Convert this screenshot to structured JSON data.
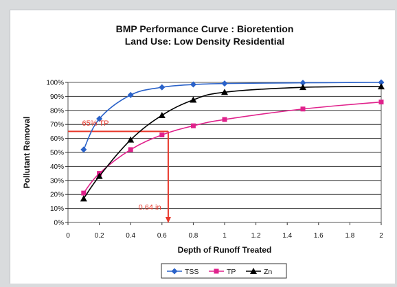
{
  "chart_data": {
    "type": "line",
    "title": "BMP Performance Curve : Bioretention",
    "subtitle": "Land Use: Low Density Residential",
    "xlabel": "Depth of Runoff Treated",
    "ylabel": "Pollutant Removal",
    "xlim": [
      0,
      2
    ],
    "ylim": [
      0,
      100
    ],
    "x_ticks": [
      "0",
      "0.2",
      "0.4",
      "0.6",
      "0.8",
      "1",
      "1.2",
      "1.4",
      "1.6",
      "1.8",
      "2"
    ],
    "y_ticks": [
      "0%",
      "10%",
      "20%",
      "30%",
      "40%",
      "50%",
      "60%",
      "70%",
      "80%",
      "90%",
      "100%"
    ],
    "grid": "horizontal",
    "legend_position": "bottom",
    "series": [
      {
        "name": "TSS",
        "color": "#2a62c9",
        "marker": "diamond",
        "x": [
          0.1,
          0.2,
          0.4,
          0.6,
          0.8,
          1.0,
          1.5,
          2.0
        ],
        "y": [
          52,
          74,
          91,
          96.5,
          98.5,
          99.2,
          99.7,
          100
        ]
      },
      {
        "name": "TP",
        "color": "#e0228c",
        "marker": "square",
        "x": [
          0.1,
          0.2,
          0.4,
          0.6,
          0.8,
          1.0,
          1.5,
          2.0
        ],
        "y": [
          21,
          35,
          52,
          62.5,
          69,
          73.5,
          81,
          86
        ]
      },
      {
        "name": "Zn",
        "color": "#000000",
        "marker": "triangle",
        "x": [
          0.1,
          0.2,
          0.4,
          0.6,
          0.8,
          1.0,
          1.5,
          2.0
        ],
        "y": [
          17,
          33,
          59,
          76.5,
          87.5,
          93,
          96.5,
          97
        ]
      }
    ],
    "annotations": [
      {
        "text": "65% TP",
        "color": "#e8372a",
        "x": 0.09,
        "y": 69
      },
      {
        "text": "0.64 in",
        "color": "#e8372a",
        "x": 0.45,
        "y": 9
      }
    ],
    "reference_lines": {
      "color": "#e8372a",
      "horizontal_y": 65,
      "vertical_x": 0.64
    }
  }
}
